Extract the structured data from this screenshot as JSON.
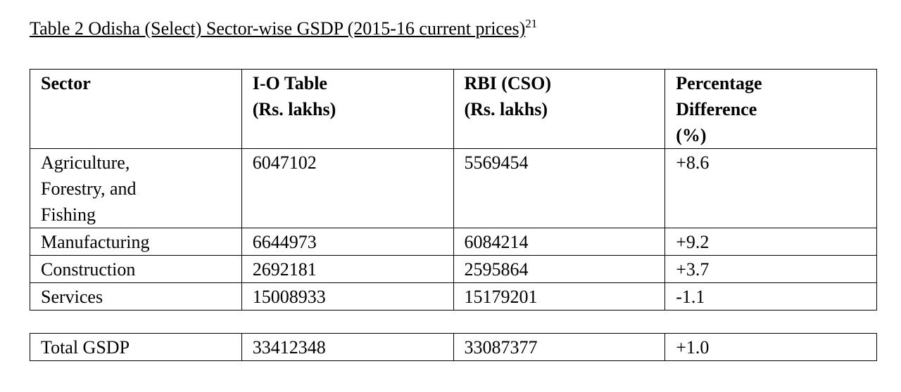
{
  "title": {
    "text": "Table 2 Odisha (Select) Sector-wise GSDP (2015-16 current prices)",
    "footnote": "21"
  },
  "table": {
    "header": [
      [
        "Sector"
      ],
      [
        "I-O Table",
        "(Rs. lakhs)"
      ],
      [
        "RBI (CSO)",
        "(Rs. lakhs)"
      ],
      [
        "Percentage",
        "Difference",
        "(%)"
      ]
    ],
    "rows": [
      [
        [
          "Agriculture,",
          "Forestry, and",
          "Fishing"
        ],
        [
          "6047102"
        ],
        [
          "5569454"
        ],
        [
          "+8.6"
        ]
      ],
      [
        [
          "Manufacturing"
        ],
        [
          "6644973"
        ],
        [
          "6084214"
        ],
        [
          "+9.2"
        ]
      ],
      [
        [
          "Construction"
        ],
        [
          "2692181"
        ],
        [
          "2595864"
        ],
        [
          "+3.7"
        ]
      ],
      [
        [
          "Services"
        ],
        [
          "15008933"
        ],
        [
          "15179201"
        ],
        [
          "-1.1"
        ]
      ]
    ]
  },
  "total": {
    "rows": [
      [
        [
          "Total GSDP"
        ],
        [
          "33412348"
        ],
        [
          "33087377"
        ],
        [
          "+1.0"
        ]
      ]
    ]
  }
}
